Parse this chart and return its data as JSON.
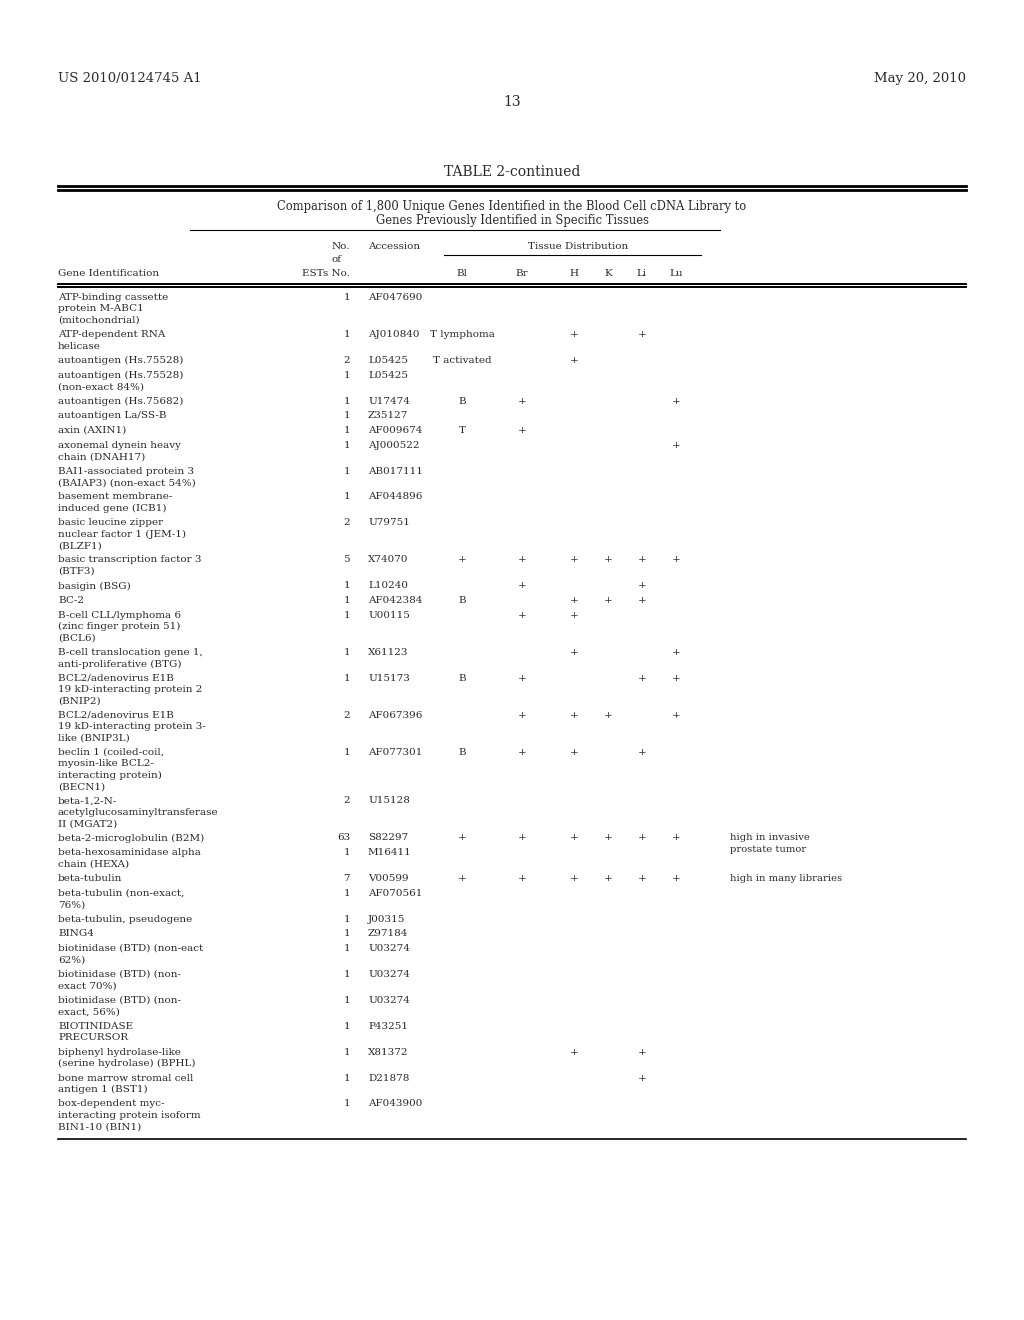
{
  "page_left": "US 2010/0124745 A1",
  "page_right": "May 20, 2010",
  "page_number": "13",
  "table_title": "TABLE 2-continued",
  "table_subtitle1": "Comparison of 1,800 Unique Genes Identified in the Blood Cell cDNA Library to",
  "table_subtitle2": "Genes Previously Identified in Specific Tissues",
  "text_color": "#2a2a2a",
  "font_size": 7.5,
  "rows": [
    [
      "ATP-binding cassette\nprotein M-ABC1\n(mitochondrial)",
      "1",
      "AF047690",
      "",
      "",
      "",
      "",
      "",
      "",
      ""
    ],
    [
      "ATP-dependent RNA\nhelicase",
      "1",
      "AJ010840",
      "T lymphoma",
      "",
      "+",
      "",
      "+",
      "",
      ""
    ],
    [
      "autoantigen (Hs.75528)",
      "2",
      "L05425",
      "T activated",
      "",
      "+",
      "",
      "",
      "",
      ""
    ],
    [
      "autoantigen (Hs.75528)\n(non-exact 84%)",
      "1",
      "L05425",
      "",
      "",
      "",
      "",
      "",
      "",
      ""
    ],
    [
      "autoantigen (Hs.75682)",
      "1",
      "U17474",
      "B",
      "+",
      "",
      "",
      "",
      "+",
      ""
    ],
    [
      "autoantigen La/SS-B",
      "1",
      "Z35127",
      "",
      "",
      "",
      "",
      "",
      "",
      ""
    ],
    [
      "axin (AXIN1)",
      "1",
      "AF009674",
      "T",
      "+",
      "",
      "",
      "",
      "",
      ""
    ],
    [
      "axonemal dynein heavy\nchain (DNAH17)",
      "1",
      "AJ000522",
      "",
      "",
      "",
      "",
      "",
      "+",
      ""
    ],
    [
      "BAI1-associated protein 3\n(BAIAP3) (non-exact 54%)",
      "1",
      "AB017111",
      "",
      "",
      "",
      "",
      "",
      "",
      ""
    ],
    [
      "basement membrane-\ninduced gene (ICB1)",
      "1",
      "AF044896",
      "",
      "",
      "",
      "",
      "",
      "",
      ""
    ],
    [
      "basic leucine zipper\nnuclear factor 1 (JEM-1)\n(BLZF1)",
      "2",
      "U79751",
      "",
      "",
      "",
      "",
      "",
      "",
      ""
    ],
    [
      "basic transcription factor 3\n(BTF3)",
      "5",
      "X74070",
      "+",
      "+",
      "+",
      "+",
      "+",
      "+",
      ""
    ],
    [
      "basigin (BSG)",
      "1",
      "L10240",
      "",
      "+",
      "",
      "",
      "+",
      "",
      ""
    ],
    [
      "BC-2",
      "1",
      "AF042384",
      "B",
      "",
      "+",
      "+",
      "+",
      "",
      ""
    ],
    [
      "B-cell CLL/lymphoma 6\n(zinc finger protein 51)\n(BCL6)",
      "1",
      "U00115",
      "",
      "+",
      "+",
      "",
      "",
      "",
      ""
    ],
    [
      "B-cell translocation gene 1,\nanti-proliferative (BTG)",
      "1",
      "X61123",
      "",
      "",
      "+",
      "",
      "",
      "+",
      ""
    ],
    [
      "BCL2/adenovirus E1B\n19 kD-interacting protein 2\n(BNIP2)",
      "1",
      "U15173",
      "B",
      "+",
      "",
      "",
      "+",
      "+",
      ""
    ],
    [
      "BCL2/adenovirus E1B\n19 kD-interacting protein 3-\nlike (BNIP3L)",
      "2",
      "AF067396",
      "",
      "+",
      "+",
      "+",
      "",
      "+",
      ""
    ],
    [
      "beclin 1 (coiled-coil,\nmyosin-like BCL2-\ninteracting protein)\n(BECN1)",
      "1",
      "AF077301",
      "B",
      "+",
      "+",
      "",
      "+",
      "",
      ""
    ],
    [
      "beta-1,2-N-\nacetylglucosaminyltransferase\nII (MGAT2)",
      "2",
      "U15128",
      "",
      "",
      "",
      "",
      "",
      "",
      ""
    ],
    [
      "beta-2-microglobulin (B2M)",
      "63",
      "S82297",
      "+",
      "+",
      "+",
      "+",
      "+",
      "+",
      "high in invasive\nprostate tumor"
    ],
    [
      "beta-hexosaminidase alpha\nchain (HEXA)",
      "1",
      "M16411",
      "",
      "",
      "",
      "",
      "",
      "",
      ""
    ],
    [
      "beta-tubulin",
      "7",
      "V00599",
      "+",
      "+",
      "+",
      "+",
      "+",
      "+",
      "high in many libraries"
    ],
    [
      "beta-tubulin (non-exact,\n76%)",
      "1",
      "AF070561",
      "",
      "",
      "",
      "",
      "",
      "",
      ""
    ],
    [
      "beta-tubulin, pseudogene",
      "1",
      "J00315",
      "",
      "",
      "",
      "",
      "",
      "",
      ""
    ],
    [
      "BING4",
      "1",
      "Z97184",
      "",
      "",
      "",
      "",
      "",
      "",
      ""
    ],
    [
      "biotinidase (BTD) (non-eact\n62%)",
      "1",
      "U03274",
      "",
      "",
      "",
      "",
      "",
      "",
      ""
    ],
    [
      "biotinidase (BTD) (non-\nexact 70%)",
      "1",
      "U03274",
      "",
      "",
      "",
      "",
      "",
      "",
      ""
    ],
    [
      "biotinidase (BTD) (non-\nexact, 56%)",
      "1",
      "U03274",
      "",
      "",
      "",
      "",
      "",
      "",
      ""
    ],
    [
      "BIOTINIDASE\nPRECURSOR",
      "1",
      "P43251",
      "",
      "",
      "",
      "",
      "",
      "",
      ""
    ],
    [
      "biphenyl hydrolase-like\n(serine hydrolase) (BPHL)",
      "1",
      "X81372",
      "",
      "",
      "+",
      "",
      "+",
      "",
      ""
    ],
    [
      "bone marrow stromal cell\nantigen 1 (BST1)",
      "1",
      "D21878",
      "",
      "",
      "",
      "",
      "+",
      "",
      ""
    ],
    [
      "box-dependent myc-\ninteracting protein isoform\nBIN1-10 (BIN1)",
      "1",
      "AF043900",
      "",
      "",
      "",
      "",
      "",
      "",
      ""
    ]
  ]
}
